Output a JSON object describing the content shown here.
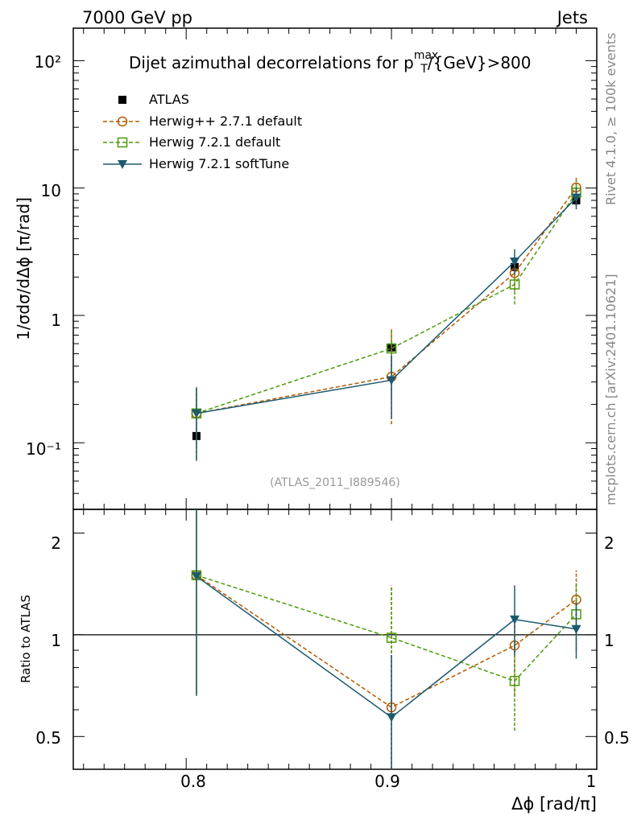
{
  "header": {
    "left": "7000 GeV pp",
    "right": "Jets",
    "side_top": "Rivet 4.1.0, ≥ 100k events",
    "side_bottom": "mcplots.cern.ch [arXiv:2401.10621]"
  },
  "colors": {
    "atlas": "#000000",
    "herwigpp": "#b35900",
    "herwig721": "#4a9a0a",
    "softtune": "#1d5a6e"
  },
  "chart_data": [
    {
      "type": "scatter",
      "title_pre": "Dijet azimuthal decorrelations for p",
      "title_sup": "max",
      "title_sub": "T",
      "title_post": "/{GeV}>800",
      "xlabel": "Δϕ [rad/π]",
      "ylabel": "1/σdσ/dΔϕ [π/rad]",
      "yscale": "log",
      "xlim": [
        0.745,
        1.0
      ],
      "ylim": [
        0.03,
        180
      ],
      "ytick_labels": [
        "10⁻¹",
        "1",
        "10",
        "10²"
      ],
      "watermark": "(ATLAS_2011_I889546)",
      "legend_position": "top-left",
      "x": [
        0.805,
        0.9,
        0.96,
        0.99
      ],
      "series": [
        {
          "key": "atlas",
          "name": "ATLAS",
          "marker": "filled-square",
          "line": "none",
          "values": [
            0.113,
            0.56,
            2.4,
            8.0
          ],
          "err_lo": [
            0.113,
            0.56,
            2.4,
            8.0
          ],
          "err_hi": [
            0.113,
            0.56,
            2.4,
            8.0
          ]
        },
        {
          "key": "herwigpp",
          "name": "Herwig++ 2.7.1 default",
          "marker": "open-circle",
          "line": "dashed",
          "values": [
            0.17,
            0.33,
            2.15,
            10.1
          ],
          "err_lo": [
            0.095,
            0.14,
            1.55,
            8.0
          ],
          "err_hi": [
            0.275,
            0.78,
            2.8,
            12.3
          ]
        },
        {
          "key": "herwig721",
          "name": "Herwig 7.2.1 default",
          "marker": "open-square",
          "line": "dashed",
          "values": [
            0.17,
            0.55,
            1.75,
            9.2
          ],
          "err_lo": [
            0.075,
            0.23,
            1.22,
            7.2
          ],
          "err_hi": [
            0.275,
            0.77,
            2.3,
            11.5
          ]
        },
        {
          "key": "softtune",
          "name": "Herwig 7.2.1 softTune",
          "marker": "filled-triangle-down",
          "line": "solid",
          "values": [
            0.17,
            0.31,
            2.65,
            8.4
          ],
          "err_lo": [
            0.072,
            0.155,
            2.1,
            6.8
          ],
          "err_hi": [
            0.27,
            0.48,
            3.3,
            10.2
          ]
        }
      ]
    },
    {
      "type": "scatter",
      "ylabel": "Ratio to ATLAS",
      "yscale": "log",
      "xlim": [
        0.745,
        1.0
      ],
      "ylim": [
        0.4,
        2.35
      ],
      "ytick_labels": [
        "0.5",
        "1",
        "2"
      ],
      "xtick_labels": [
        "0.8",
        "0.9",
        "1"
      ],
      "reference_line": 1,
      "x": [
        0.805,
        0.9,
        0.96,
        0.99
      ],
      "series": [
        {
          "key": "herwigpp",
          "name": "Herwig++ 2.7.1 default",
          "marker": "open-circle",
          "line": "dashed",
          "values": [
            1.5,
            0.61,
            0.93,
            1.27
          ],
          "err_lo": [
            0.67,
            0.4,
            0.66,
            1.0
          ],
          "err_hi": [
            2.35,
            1.4,
            1.16,
            1.55
          ]
        },
        {
          "key": "herwig721",
          "name": "Herwig 7.2.1 default",
          "marker": "open-square",
          "line": "dashed",
          "values": [
            1.5,
            0.98,
            0.73,
            1.15
          ],
          "err_lo": [
            0.66,
            0.4,
            0.52,
            0.9
          ],
          "err_hi": [
            2.35,
            1.39,
            0.96,
            1.42
          ]
        },
        {
          "key": "softtune",
          "name": "Herwig 7.2.1 softTune",
          "marker": "filled-triangle-down",
          "line": "solid",
          "values": [
            1.49,
            0.57,
            1.11,
            1.04
          ],
          "err_lo": [
            0.66,
            0.4,
            0.87,
            0.85
          ],
          "err_hi": [
            2.35,
            0.87,
            1.4,
            1.25
          ]
        }
      ]
    }
  ]
}
